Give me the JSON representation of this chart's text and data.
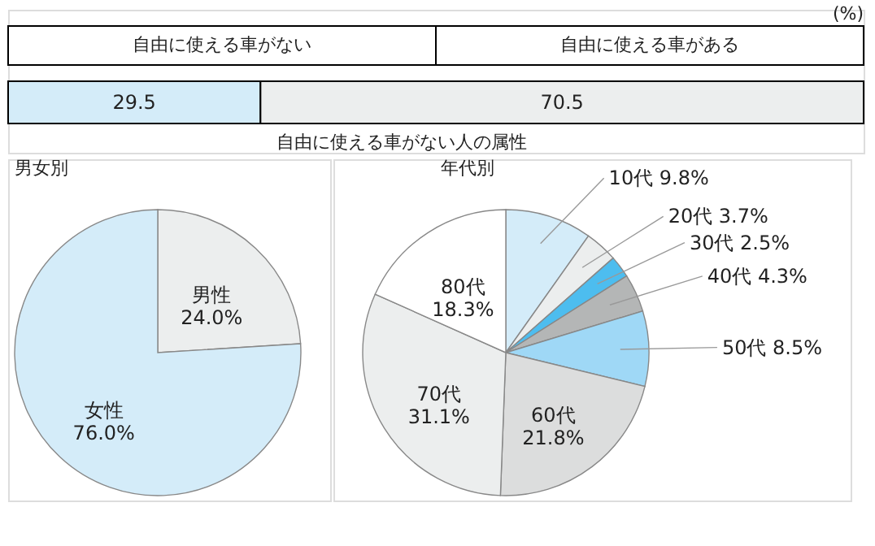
{
  "chart_data": [
    {
      "type": "bar",
      "orientation": "horizontal",
      "stacked": true,
      "data_labels": true,
      "categories": [
        null
      ],
      "legend": "top",
      "series": [
        {
          "name": "自由に使える車がない",
          "color": "#d4ecf9",
          "values": [
            29.5
          ]
        },
        {
          "name": "自由に使える車がある",
          "color": "#eceeee",
          "values": [
            70.5
          ]
        }
      ],
      "annotations": [
        "(%)",
        "自由に使える車がない人の属性"
      ]
    },
    {
      "type": "pie",
      "title": "男女別",
      "categories": [
        "男性",
        "女性"
      ],
      "values": [
        24.0,
        76.0
      ],
      "colors": [
        "#eceeee",
        "#d4ecf9"
      ],
      "value_labels": [
        "24.0%",
        "76.0%"
      ]
    },
    {
      "type": "pie",
      "title": "年代別",
      "categories": [
        "10代",
        "20代",
        "30代",
        "40代",
        "50代",
        "60代",
        "70代",
        "80代"
      ],
      "values": [
        9.8,
        3.7,
        2.5,
        4.3,
        8.5,
        21.8,
        31.1,
        18.3
      ],
      "colors": [
        "#d4ecf9",
        "#eceeee",
        "#4dbdef",
        "#b4b6b6",
        "#9fd8f6",
        "#dcdddd",
        "#eceeee",
        "#ffffff"
      ],
      "value_labels": [
        "9.8%",
        "3.7%",
        "2.5%",
        "4.3%",
        "8.5%",
        "21.8%",
        "31.1%",
        "18.3%"
      ]
    }
  ]
}
